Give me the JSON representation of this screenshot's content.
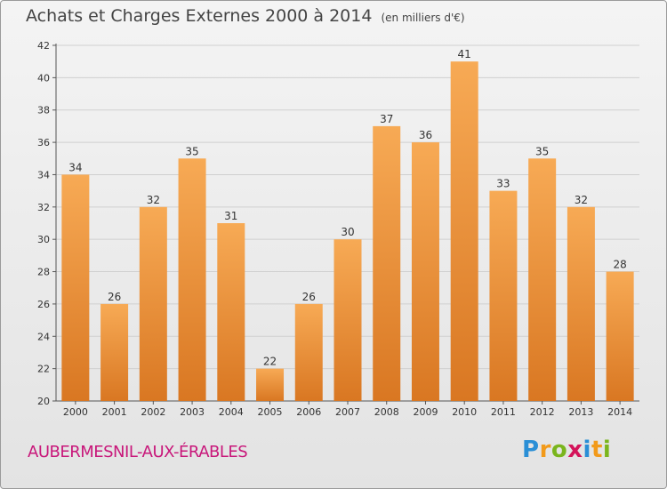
{
  "title": "Achats et Charges Externes 2000 à 2014",
  "subtitle": "(en milliers d'€)",
  "commune": "AUBERMESNIL-AUX-ÉRABLES",
  "logo": {
    "letters": [
      "P",
      "r",
      "o",
      "x",
      "i",
      "t",
      "i"
    ],
    "colors": [
      "#2a8fd6",
      "#f29a1a",
      "#7ab51d",
      "#d4145a",
      "#2a8fd6",
      "#f29a1a",
      "#7ab51d"
    ]
  },
  "colors": {
    "bar_light": "#f7aa55",
    "bar_dark": "#d97722",
    "grid": "#cfcfcf",
    "title": "#444444",
    "commune": "#c8177a"
  },
  "chart_data": {
    "type": "bar",
    "categories": [
      "2000",
      "2001",
      "2002",
      "2003",
      "2004",
      "2005",
      "2006",
      "2007",
      "2008",
      "2009",
      "2010",
      "2011",
      "2012",
      "2013",
      "2014"
    ],
    "values": [
      34,
      26,
      32,
      35,
      31,
      22,
      26,
      30,
      37,
      36,
      41,
      33,
      35,
      32,
      28
    ],
    "ylim": [
      20,
      42
    ],
    "yticks": [
      20,
      22,
      24,
      26,
      28,
      30,
      32,
      34,
      36,
      38,
      40,
      42
    ],
    "grid": true
  }
}
